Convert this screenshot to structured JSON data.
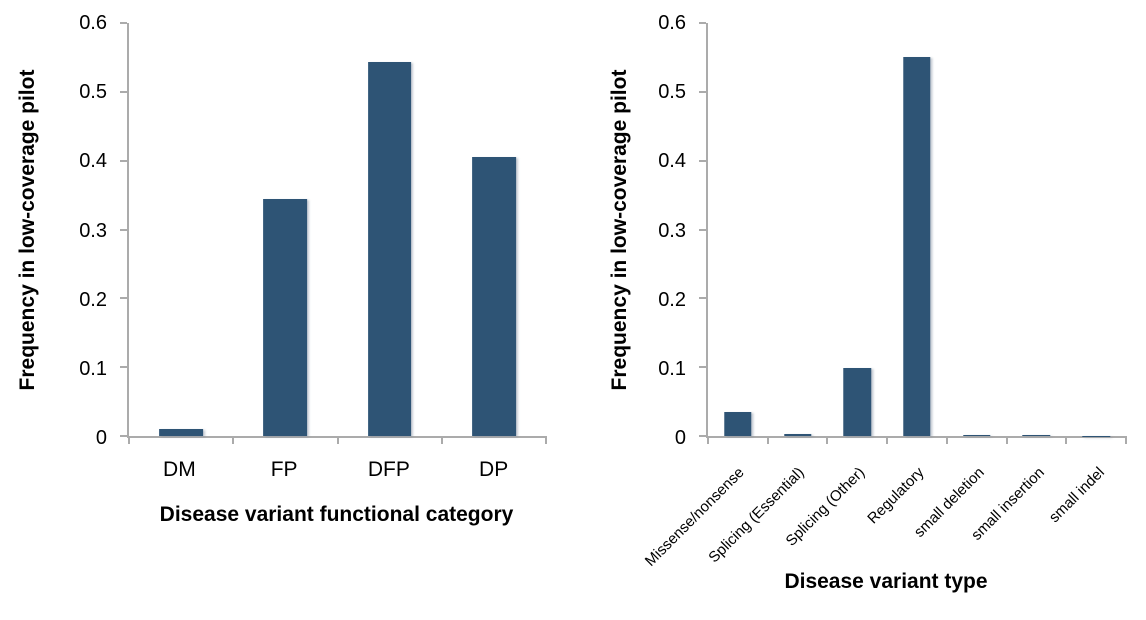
{
  "figure": {
    "background": "#ffffff"
  },
  "colors": {
    "bar": "#2e5475",
    "axis": "#ababab",
    "text": "#000000"
  },
  "chart_data": [
    {
      "type": "bar",
      "title": "",
      "categories": [
        "DM",
        "FP",
        "DFP",
        "DP"
      ],
      "values": [
        0.01,
        0.345,
        0.543,
        0.405
      ],
      "xlabel": "Disease variant functional category",
      "ylabel": "Frequency in low-coverage pilot",
      "ylim": [
        0,
        0.6
      ],
      "yticks": [
        0,
        0.1,
        0.2,
        0.3,
        0.4,
        0.5,
        0.6
      ],
      "ytick_labels": [
        "0",
        "0.1",
        "0.2",
        "0.3",
        "0.4",
        "0.5",
        "0.6"
      ],
      "grid": false,
      "legend": "none",
      "bar_color": "#2e5475",
      "axis_color": "#ababab",
      "bar_width_ratio": 0.42,
      "x_tick_label_rotation": 0
    },
    {
      "type": "bar",
      "title": "",
      "categories": [
        "Missense/nonsense",
        "Splicing (Essential)",
        "Splicing (Other)",
        "Regulatory",
        "small deletion",
        "small insertion",
        "small indel"
      ],
      "values": [
        0.035,
        0.003,
        0.099,
        0.55,
        0.002,
        0.002,
        0.0005
      ],
      "xlabel": "Disease variant type",
      "ylabel": "Frequency in low-coverage pilot",
      "ylim": [
        0,
        0.6
      ],
      "yticks": [
        0,
        0.1,
        0.2,
        0.3,
        0.4,
        0.5,
        0.6
      ],
      "ytick_labels": [
        "0",
        "0.1",
        "0.2",
        "0.3",
        "0.4",
        "0.5",
        "0.6"
      ],
      "grid": false,
      "legend": "none",
      "bar_color": "#2e5475",
      "axis_color": "#ababab",
      "bar_width_ratio": 0.46,
      "x_tick_label_rotation": 45
    }
  ]
}
